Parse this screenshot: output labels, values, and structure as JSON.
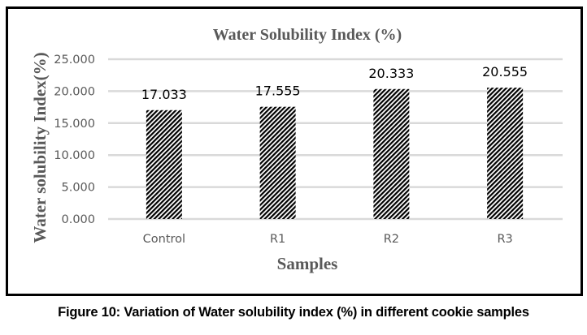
{
  "chart_data": {
    "type": "bar",
    "title": "Water Solubility Index (%)",
    "xlabel": "Samples",
    "ylabel": "Water solubility Index(%)",
    "categories": [
      "Control",
      "R1",
      "R2",
      "R3"
    ],
    "values": [
      17.033,
      17.555,
      20.333,
      20.555
    ],
    "data_labels": [
      "17.033",
      "17.555",
      "20.333",
      "20.555"
    ],
    "ylim": [
      0,
      25
    ],
    "yticks": [
      0,
      5,
      10,
      15,
      20,
      25
    ],
    "ytick_labels": [
      "0.000",
      "5.000",
      "10.000",
      "15.000",
      "20.000",
      "25.000"
    ],
    "grid": true,
    "legend": "none",
    "bar_fill": "diagonal-hatch",
    "colors": {
      "bar": "#000000",
      "grid": "#d9d9d9",
      "text": "#595959"
    }
  },
  "caption": "Figure 10: Variation of Water solubility index (%) in different cookie samples"
}
